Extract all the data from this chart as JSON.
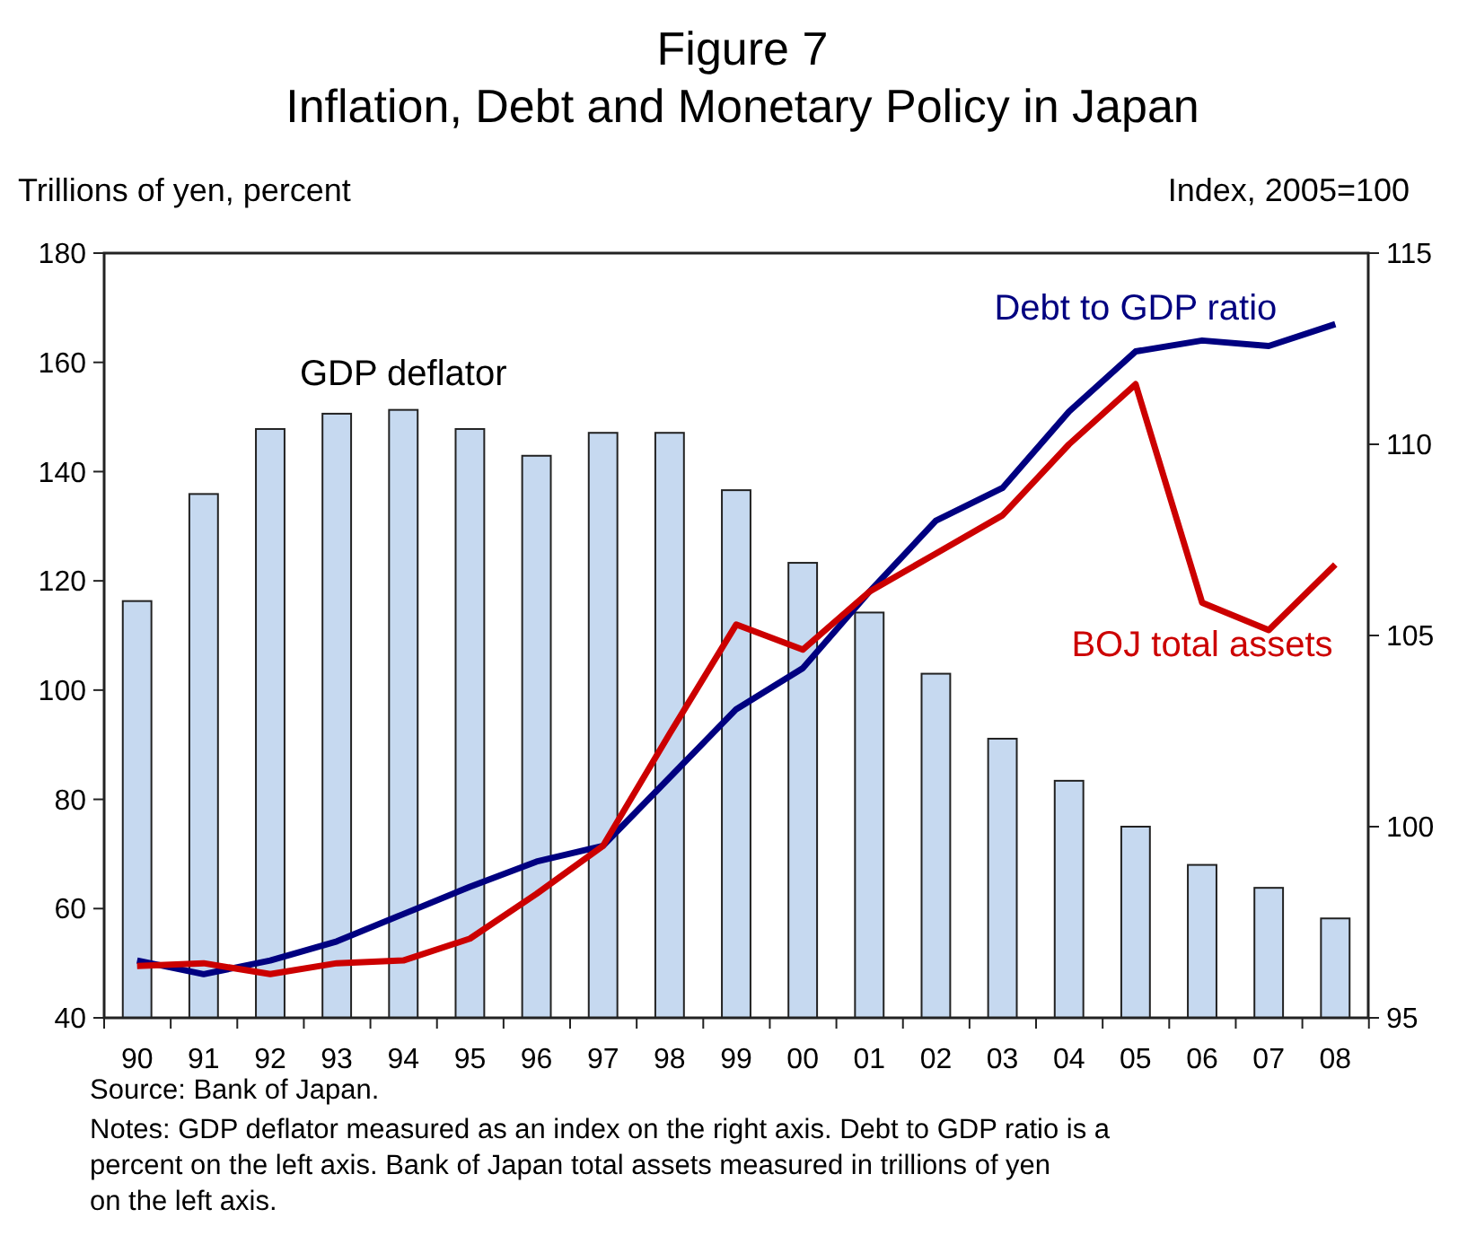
{
  "chart_data": {
    "type": "bar",
    "title": "Figure 7",
    "subtitle": "Inflation, Debt and Monetary Policy in Japan",
    "ylabel": "Trillions of yen, percent",
    "y2label": "Index, 2005=100",
    "categories": [
      "90",
      "91",
      "92",
      "93",
      "94",
      "95",
      "96",
      "97",
      "98",
      "99",
      "00",
      "01",
      "02",
      "03",
      "04",
      "05",
      "06",
      "07",
      "08"
    ],
    "series": [
      {
        "name": "GDP deflator",
        "axis": "y2",
        "color": "#c6d9f0",
        "values": [
          105.9,
          108.7,
          110.4,
          110.8,
          110.9,
          110.4,
          109.7,
          110.3,
          110.3,
          108.8,
          106.9,
          105.6,
          104.0,
          102.3,
          101.2,
          100.0,
          99.0,
          98.4,
          97.6
        ]
      },
      {
        "name": "Debt  to GDP ratio",
        "type": "line",
        "color": "#000080",
        "values": [
          50.5,
          48,
          50.5,
          54,
          59,
          64,
          68.6,
          71.5,
          84,
          96.5,
          104,
          118,
          131,
          137,
          151,
          162,
          164,
          163,
          167
        ]
      },
      {
        "name": "BOJ total assets",
        "type": "line",
        "color": "#cc0000",
        "values": [
          49.5,
          50,
          48,
          50,
          50.5,
          54.5,
          62.7,
          71.5,
          92,
          112,
          107.4,
          118,
          125,
          132,
          145,
          156,
          116,
          111,
          123
        ]
      }
    ],
    "ylim": [
      40,
      180
    ],
    "yticks": [
      40,
      60,
      80,
      100,
      120,
      140,
      160,
      180
    ],
    "y2lim": [
      95,
      115
    ],
    "y2ticks": [
      95,
      100,
      105,
      110,
      115
    ],
    "grid": false,
    "legend": false,
    "line_style": "solid",
    "marker": "none",
    "annotations": [
      "Source:  Bank of Japan.",
      "Notes:  GDP deflator measured as an index on the right axis.  Debt to GDP ratio is a percent on the left axis.  Bank of Japan total assets measured in trillions of yen on the left axis."
    ]
  }
}
